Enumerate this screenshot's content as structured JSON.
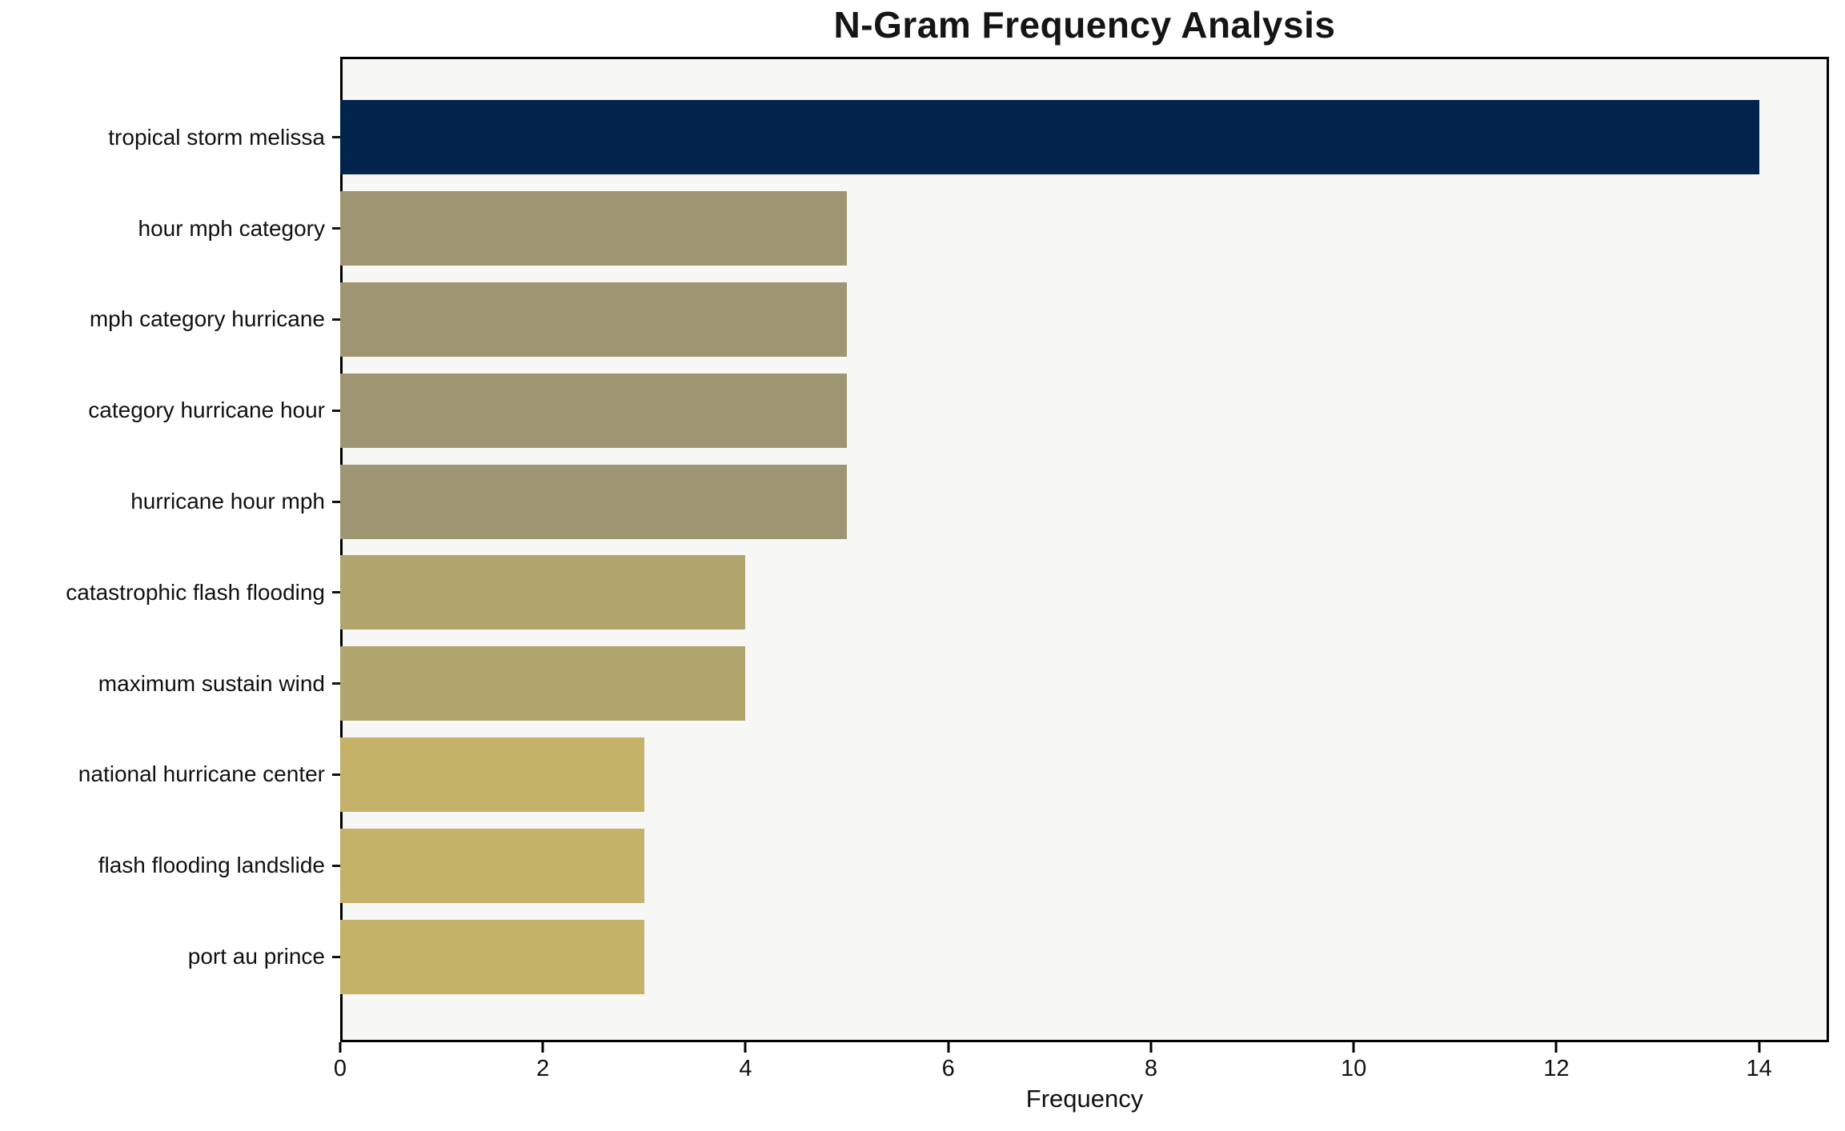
{
  "chart_data": {
    "type": "bar",
    "orientation": "horizontal",
    "title": "N-Gram Frequency Analysis",
    "xlabel": "Frequency",
    "ylabel": "",
    "categories": [
      "tropical storm melissa",
      "hour mph category",
      "mph category hurricane",
      "category hurricane hour",
      "hurricane hour mph",
      "catastrophic flash flooding",
      "maximum sustain wind",
      "national hurricane center",
      "flash flooding landslide",
      "port au prince"
    ],
    "values": [
      14,
      5,
      5,
      5,
      5,
      4,
      4,
      3,
      3,
      3
    ],
    "bar_colors": [
      "#02234c",
      "#9e9572",
      "#9e9572",
      "#9e9572",
      "#9e9572",
      "#b0a56c",
      "#b0a56c",
      "#c4b269",
      "#c4b269",
      "#c4b269"
    ],
    "x_ticks": [
      0,
      2,
      4,
      6,
      8,
      10,
      12,
      14
    ],
    "xlim": [
      0,
      14.69
    ],
    "grid": false,
    "legend": null,
    "plot_background": "#f7f7f5",
    "axis_color": "#000000"
  }
}
